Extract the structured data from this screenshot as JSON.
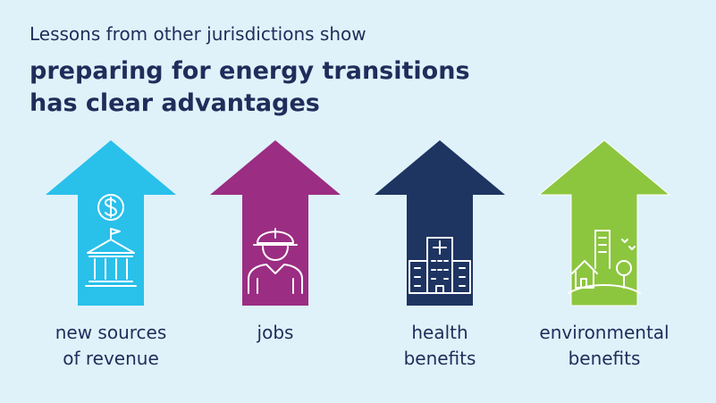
{
  "header": {
    "kicker": "Lessons from other jurisdictions show",
    "title_lines": [
      "preparing for energy transitions",
      "has clear advantages"
    ]
  },
  "items": [
    {
      "lines": [
        "new sources",
        "of revenue"
      ]
    },
    {
      "lines": [
        "jobs"
      ]
    },
    {
      "lines": [
        "health",
        "benefits"
      ]
    },
    {
      "lines": [
        "environmental",
        "benefits"
      ]
    }
  ]
}
